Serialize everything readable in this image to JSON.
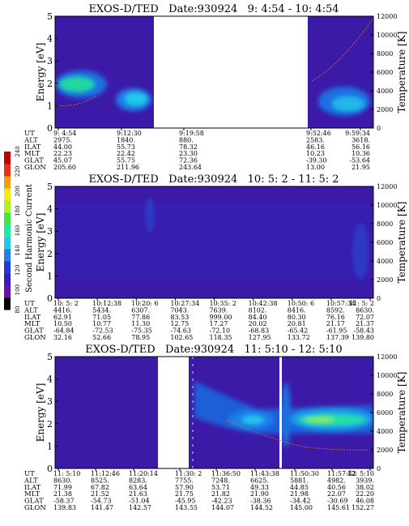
{
  "chart_data": [
    {
      "type": "heatmap",
      "title": "EXOS-D/TED   Date:930924   9: 4:54 - 10: 4:54",
      "ylabel": "Energy [eV]",
      "y2label": "Temperature [K]",
      "ylim": [
        0,
        5
      ],
      "y2lim": [
        0,
        12000
      ],
      "yticks": [
        "0",
        "1",
        "2",
        "3",
        "4",
        "5"
      ],
      "y2ticks": [
        "0",
        "2000",
        "4000",
        "6000",
        "8000",
        "10000",
        "12000"
      ],
      "row_labels": [
        "UT",
        "ALT",
        "ILAT",
        "MLT",
        "GLAT",
        "GLON"
      ],
      "columns": [
        [
          "9: 4:54",
          "2975.",
          "44.00",
          "22.23",
          "45.07",
          "205.60"
        ],
        [
          "9:12:30",
          "1840.",
          "55.73",
          "22.42",
          "55.75",
          "211.96"
        ],
        [
          "9:19:58",
          "880.",
          "78.32",
          "23.30",
          "72.36",
          "243.64"
        ],
        [
          "9:52:46",
          "2583.",
          "46.16",
          "10.23",
          "-39.30",
          "13.00"
        ],
        [
          "9:59:34",
          "3618.",
          "56.16",
          "10.36",
          "-53.64",
          "21.95"
        ]
      ],
      "data_gap": true,
      "temperature_trace": true,
      "color": "heat"
    },
    {
      "type": "heatmap",
      "title": "EXOS-D/TED   Date:930924   10: 5: 2 - 11: 5: 2",
      "ylabel": "Energy [eV]",
      "y2label": "Temperature [K]",
      "ylim": [
        0,
        5
      ],
      "y2lim": [
        0,
        12000
      ],
      "yticks": [
        "0",
        "1",
        "2",
        "3",
        "4",
        "5"
      ],
      "y2ticks": [
        "0",
        "2000",
        "4000",
        "6000",
        "8000",
        "10000",
        "12000"
      ],
      "row_labels": [
        "UT",
        "ALT",
        "ILAT",
        "MLT",
        "GLAT",
        "GLON"
      ],
      "columns": [
        [
          "10: 5: 2",
          "4416.",
          "62.91",
          "10.50",
          "-64.84",
          "32.16"
        ],
        [
          "10:12:38",
          "5434.",
          "71.05",
          "10.77",
          "-72.53",
          "52.66"
        ],
        [
          "10:20: 6",
          "6307.",
          "77.86",
          "11.30",
          "-75.35",
          "78.95"
        ],
        [
          "10:27:34",
          "7043.",
          "83.53",
          "12.75",
          "-74.63",
          "102.65"
        ],
        [
          "10:35: 2",
          "7639.",
          "999.00",
          "17.27",
          "-72.10",
          "118.35"
        ],
        [
          "10:42:38",
          "8102.",
          "84.40",
          "20.02",
          "-68.83",
          "127.95"
        ],
        [
          "10:50: 6",
          "8416.",
          "80.30",
          "20.81",
          "-65.42",
          "133.72"
        ],
        [
          "10:57:34",
          "8592.",
          "76.16",
          "21.17",
          "-61.95",
          "137.39"
        ],
        [
          "11: 5: 2",
          "8630.",
          "72.07",
          "21.37",
          "-58.43",
          "139.80"
        ]
      ],
      "data_gap": false,
      "temperature_trace": false,
      "color": "quiet"
    },
    {
      "type": "heatmap",
      "title": "EXOS-D/TED   Date:930924   11: 5:10 - 12: 5:10",
      "ylabel": "Energy [eV]",
      "y2label": "Temperature [K]",
      "ylim": [
        0,
        5
      ],
      "y2lim": [
        0,
        12000
      ],
      "yticks": [
        "0",
        "1",
        "2",
        "3",
        "4",
        "5"
      ],
      "y2ticks": [
        "0",
        "2000",
        "4000",
        "6000",
        "8000",
        "10000",
        "12000"
      ],
      "row_labels": [
        "UT",
        "ALT",
        "ILAT",
        "MLT",
        "GLAT",
        "GLON"
      ],
      "columns": [
        [
          "11: 5:10",
          "8630.",
          "71.99",
          "21.38",
          "-58.37",
          "139.83"
        ],
        [
          "11:12:46",
          "8525.",
          "67.82",
          "21.52",
          "-54.73",
          "141.47"
        ],
        [
          "11:20:14",
          "8283.",
          "63.64",
          "21.63",
          "-51.04",
          "142.57"
        ],
        [
          "11:30: 2",
          "7755.",
          "57.90",
          "21.75",
          "-45.95",
          "143.55"
        ],
        [
          "11:36:50",
          "7248.",
          "53.71",
          "21.82",
          "-42.23",
          "144.07"
        ],
        [
          "11:43:38",
          "6625.",
          "49.33",
          "21.90",
          "-38.36",
          "144.52"
        ],
        [
          "11:50:30",
          "5881.",
          "44.85",
          "21.98",
          "-34.42",
          "145.00"
        ],
        [
          "11:57:42",
          "4982.",
          "40.56",
          "22.07",
          "-30.69",
          "145.61"
        ],
        [
          "12: 5:10",
          "3939.",
          "38.02",
          "22.20",
          "46.08",
          "152.27"
        ]
      ],
      "data_gap": true,
      "temperature_trace": true,
      "color": "heat"
    }
  ],
  "colorbar": {
    "label": "Second Harmonic Current",
    "ticks": [
      "80",
      "100",
      "120",
      "140",
      "160",
      "180",
      "200",
      "220",
      "240"
    ],
    "range": [
      80,
      240
    ],
    "colors": [
      "#000000",
      "#6a0fa8",
      "#3a18c8",
      "#1f3bd8",
      "#1f7ee8",
      "#22c8e8",
      "#22e8a8",
      "#3ee840",
      "#b0f020",
      "#f2e81a",
      "#f59a14",
      "#e8301a",
      "#c00000"
    ]
  }
}
